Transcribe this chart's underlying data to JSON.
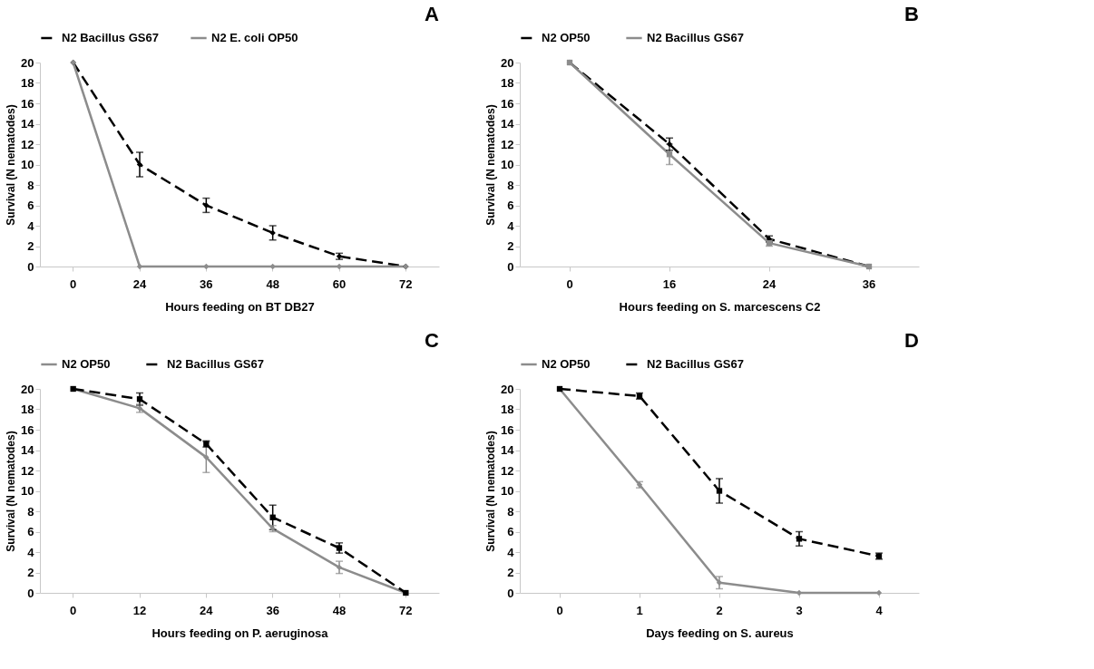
{
  "chart_data": [
    {
      "type": "line",
      "title": "A",
      "xlabel": "Hours feeding on BT DB27",
      "ylabel": "Survival (N nematodes)",
      "categories": [
        "0",
        "24",
        "36",
        "48",
        "60",
        "72"
      ],
      "ylim": [
        0,
        20
      ],
      "yticks": [
        0,
        2,
        4,
        6,
        8,
        10,
        12,
        14,
        16,
        18,
        20
      ],
      "grid": false,
      "legend": "top",
      "series": [
        {
          "name": "N2 Bacillus GS67",
          "color": "#000000",
          "line_style": "dashed",
          "marker": "diamond",
          "values": [
            20,
            10,
            6,
            3.3,
            1,
            0
          ],
          "errors": [
            null,
            1.2,
            0.7,
            0.7,
            0.3,
            null
          ]
        },
        {
          "name": "N2 E. coli OP50",
          "color": "#8c8c8c",
          "line_style": "solid",
          "marker": "diamond",
          "values": [
            20,
            0,
            0,
            0,
            0,
            0
          ]
        }
      ]
    },
    {
      "type": "line",
      "title": "B",
      "xlabel": "Hours feeding on S. marcescens C2",
      "ylabel": "Survival (N nematodes)",
      "categories": [
        "0",
        "16",
        "24",
        "36"
      ],
      "ylim": [
        0,
        20
      ],
      "yticks": [
        0,
        2,
        4,
        6,
        8,
        10,
        12,
        14,
        16,
        18,
        20
      ],
      "grid": false,
      "legend": "top",
      "series": [
        {
          "name": "N2  OP50",
          "color": "#000000",
          "line_style": "dashed",
          "marker": "diamond",
          "values": [
            20,
            12,
            2.7,
            0
          ],
          "errors": [
            null,
            0.6,
            0.3,
            null
          ]
        },
        {
          "name": "N2  Bacillus GS67",
          "color": "#8c8c8c",
          "line_style": "solid",
          "marker": "square",
          "values": [
            20,
            11,
            2.3,
            0
          ],
          "errors": [
            null,
            1.0,
            0.3,
            null
          ]
        }
      ]
    },
    {
      "type": "line",
      "title": "C",
      "xlabel": "Hours feeding on P. aeruginosa",
      "ylabel": "Survival (N nematodes)",
      "categories": [
        "0",
        "12",
        "24",
        "36",
        "48",
        "72"
      ],
      "ylim": [
        0,
        20
      ],
      "yticks": [
        0,
        2,
        4,
        6,
        8,
        10,
        12,
        14,
        16,
        18,
        20
      ],
      "grid": false,
      "legend": "top",
      "series": [
        {
          "name": "N2  OP50",
          "color": "#8c8c8c",
          "line_style": "solid",
          "marker": "diamond",
          "values": [
            20,
            18.1,
            13.3,
            6.3,
            2.5,
            0
          ],
          "errors": [
            null,
            0.4,
            1.5,
            0.3,
            0.6,
            null
          ]
        },
        {
          "name": "N2  Bacillus GS67",
          "color": "#000000",
          "line_style": "dashed",
          "marker": "square",
          "values": [
            20,
            19,
            14.6,
            7.4,
            4.4,
            0
          ],
          "errors": [
            null,
            0.6,
            0.3,
            1.2,
            0.5,
            null
          ]
        }
      ]
    },
    {
      "type": "line",
      "title": "D",
      "xlabel": "Days feeding on S. aureus",
      "ylabel": "Survival (N nematodes)",
      "categories": [
        "0",
        "1",
        "2",
        "3",
        "4"
      ],
      "ylim": [
        0,
        20
      ],
      "yticks": [
        0,
        2,
        4,
        6,
        8,
        10,
        12,
        14,
        16,
        18,
        20
      ],
      "grid": false,
      "legend": "top",
      "series": [
        {
          "name": "N2  OP50",
          "color": "#8c8c8c",
          "line_style": "solid",
          "marker": "diamond",
          "values": [
            20,
            10.6,
            1,
            0,
            0
          ],
          "errors": [
            null,
            0.3,
            0.6,
            null,
            null
          ]
        },
        {
          "name": "N2  Bacillus GS67",
          "color": "#000000",
          "line_style": "dashed",
          "marker": "square",
          "values": [
            20,
            19.3,
            10,
            5.3,
            3.6
          ],
          "errors": [
            null,
            0.3,
            1.2,
            0.7,
            0.3
          ]
        }
      ]
    }
  ]
}
